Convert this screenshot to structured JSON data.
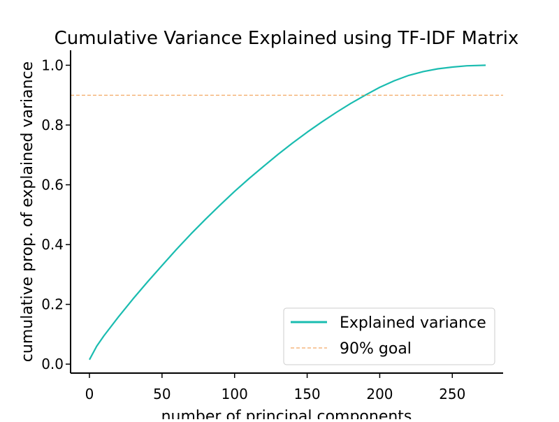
{
  "chart_data": {
    "type": "line",
    "title": "Cumulative Variance Explained using TF-IDF Matrix",
    "xlabel": "number of principal components",
    "ylabel": "cumulative prop. of explained variance",
    "xlim": [
      -13,
      285
    ],
    "ylim": [
      -0.03,
      1.05
    ],
    "x_ticks": [
      0,
      50,
      100,
      150,
      200,
      250
    ],
    "y_ticks": [
      0.0,
      0.2,
      0.4,
      0.6,
      0.8,
      1.0
    ],
    "x_tick_labels": [
      "0",
      "50",
      "100",
      "150",
      "200",
      "250"
    ],
    "y_tick_labels": [
      "0.0",
      "0.2",
      "0.4",
      "0.6",
      "0.8",
      "1.0"
    ],
    "grid": false,
    "legend_position": "lower-right",
    "series": [
      {
        "name": "Explained variance",
        "color": "#1abcb0",
        "style": "solid",
        "x": [
          0,
          5,
          10,
          20,
          30,
          40,
          50,
          60,
          70,
          80,
          90,
          100,
          110,
          120,
          130,
          140,
          150,
          160,
          170,
          180,
          190,
          200,
          210,
          220,
          230,
          240,
          250,
          260,
          273
        ],
        "y": [
          0.015,
          0.06,
          0.095,
          0.158,
          0.218,
          0.275,
          0.33,
          0.384,
          0.436,
          0.485,
          0.532,
          0.578,
          0.621,
          0.662,
          0.702,
          0.74,
          0.776,
          0.81,
          0.842,
          0.872,
          0.9,
          0.926,
          0.948,
          0.966,
          0.979,
          0.988,
          0.994,
          0.998,
          1.0
        ]
      },
      {
        "name": "90% goal",
        "color": "#f0923e",
        "style": "dashed",
        "x": [
          -13,
          285
        ],
        "y": [
          0.9,
          0.9
        ]
      }
    ]
  }
}
